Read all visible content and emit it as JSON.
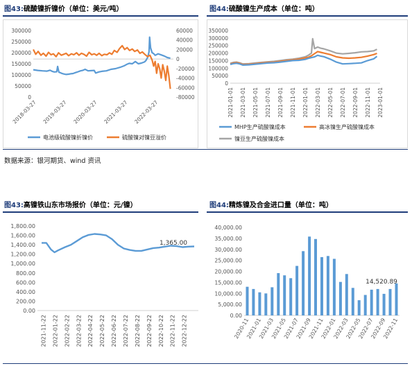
{
  "figures": [
    {
      "num": "图43:",
      "text": "硫酸镍折镍价（单位：美元/吨）"
    },
    {
      "num": "图44:",
      "text": "硫酸镍生产成本（单位：吨）"
    },
    {
      "num": "图43:",
      "text": "高镍铁山东市场报价（单位：元/镍）"
    },
    {
      "num": "图44:",
      "text": "精炼镍及合金进口量（单位：吨）"
    }
  ],
  "source": "数据来源：银河期货、wind 资讯",
  "colors": {
    "blue": "#5b9bd5",
    "orange": "#ed7d31",
    "gray": "#a5a5a5",
    "accent": "#1f3d7a"
  },
  "chart_data": [
    {
      "type": "line",
      "title": "",
      "x_ticks": [
        "2018-03-27",
        "2019-03-27",
        "2020-03-27",
        "2021-03-27",
        "2022-03-27"
      ],
      "y_left": {
        "ticks": [
          "0",
          "50000",
          "100000",
          "150000",
          "200000",
          "250000",
          "300000"
        ],
        "lim": [
          0,
          300000
        ]
      },
      "y_right": {
        "ticks": [
          "-80000",
          "-60000",
          "-40000",
          "-20000",
          "0",
          "20000",
          "40000",
          "60000"
        ],
        "lim": [
          -80000,
          60000
        ]
      },
      "series": [
        {
          "name": "电池级硫酸镍折镍价",
          "axis": "left",
          "t": [
            0,
            0.15,
            0.3,
            0.45,
            0.55,
            0.62,
            0.69,
            0.77,
            0.8,
            0.84,
            0.9,
            0.95,
            1.0,
            1.08,
            1.16,
            1.23,
            1.3,
            1.38,
            1.47,
            1.55,
            1.62,
            1.7,
            1.8,
            1.9,
            2.0,
            2.05,
            2.15,
            2.25,
            2.4,
            2.55,
            2.7,
            2.85,
            2.95,
            3.0,
            3.08,
            3.15,
            3.25,
            3.35,
            3.45,
            3.55,
            3.65,
            3.7,
            3.76,
            3.8,
            3.82,
            3.85,
            3.9,
            3.95,
            4.0,
            4.1,
            4.2,
            4.3,
            4.4,
            4.5
          ],
          "v": [
            123000,
            120000,
            118000,
            117000,
            121000,
            116000,
            113000,
            114000,
            138000,
            112000,
            109000,
            106000,
            104000,
            102000,
            103000,
            105000,
            106000,
            110000,
            114000,
            118000,
            120000,
            125000,
            118000,
            119000,
            120000,
            108000,
            113000,
            116000,
            118000,
            125000,
            128000,
            134000,
            139000,
            142000,
            148000,
            152000,
            150000,
            160000,
            150000,
            153000,
            158000,
            165000,
            180000,
            205000,
            270000,
            222000,
            200000,
            196000,
            188000,
            195000,
            190000,
            185000,
            178000,
            175000
          ]
        },
        {
          "name": "硫酸镍对镍豆溢价",
          "axis": "right",
          "t": [
            0,
            0.08,
            0.16,
            0.25,
            0.33,
            0.42,
            0.5,
            0.58,
            0.66,
            0.75,
            0.83,
            0.92,
            1.0,
            1.08,
            1.16,
            1.25,
            1.33,
            1.42,
            1.5,
            1.58,
            1.66,
            1.75,
            1.83,
            1.92,
            2.0,
            2.08,
            2.16,
            2.25,
            2.33,
            2.42,
            2.5,
            2.58,
            2.66,
            2.75,
            2.83,
            2.92,
            3.0,
            3.08,
            3.16,
            3.25,
            3.33,
            3.42,
            3.5,
            3.58,
            3.66,
            3.75,
            3.83,
            3.9,
            3.95,
            4.0,
            4.05,
            4.1,
            4.15,
            4.2,
            4.25,
            4.3,
            4.35,
            4.4,
            4.45,
            4.5
          ],
          "v": [
            20000,
            10000,
            16000,
            8000,
            12000,
            6000,
            14000,
            9000,
            11000,
            5000,
            13000,
            8000,
            10000,
            12000,
            7000,
            11000,
            9000,
            13000,
            8000,
            12000,
            10000,
            6000,
            14000,
            9000,
            11000,
            8000,
            12000,
            7000,
            10000,
            9000,
            13000,
            10000,
            18000,
            14000,
            22000,
            28000,
            20000,
            24000,
            18000,
            21000,
            16000,
            19000,
            12000,
            15000,
            10000,
            5000,
            8000,
            -2000,
            -15000,
            -5000,
            -30000,
            -10000,
            -20000,
            -40000,
            -12000,
            -25000,
            -45000,
            -15000,
            -35000,
            -63000
          ]
        }
      ]
    },
    {
      "type": "line",
      "title": "",
      "x_ticks": [
        "2021-01-01",
        "2021-03-01",
        "2021-05-01",
        "2021-07-01",
        "2021-09-01",
        "2021-11-01",
        "2022-01-01",
        "2022-03-01",
        "2022-05-01",
        "2022-07-01",
        "2022-09-01",
        "2022-11-01",
        "2023-01-01"
      ],
      "y": {
        "ticks": [
          "0",
          "50000",
          "100000",
          "150000",
          "200000",
          "250000",
          "300000",
          "350000"
        ],
        "lim": [
          0,
          350000
        ]
      },
      "series": [
        {
          "name": "MHP生产硫酸镍成本",
          "t": [
            0,
            0.5,
            1,
            1.5,
            2,
            3,
            4,
            5,
            6,
            7,
            8,
            9,
            10,
            11,
            12,
            12.5,
            13,
            13.5,
            14,
            14.5,
            15,
            16,
            17,
            18,
            19,
            20,
            21,
            22,
            23,
            23.5
          ],
          "v": [
            125000,
            130000,
            132000,
            128000,
            120000,
            122000,
            126000,
            130000,
            134000,
            136000,
            140000,
            145000,
            150000,
            152000,
            158000,
            165000,
            170000,
            175000,
            185000,
            180000,
            176000,
            160000,
            140000,
            128000,
            130000,
            132000,
            135000,
            150000,
            162000,
            178000
          ]
        },
        {
          "name": "高冰镍生产硫酸镍成本",
          "t": [
            0,
            0.5,
            1,
            1.5,
            2,
            3,
            4,
            5,
            6,
            7,
            8,
            9,
            10,
            11,
            12,
            12.5,
            13,
            13.5,
            14,
            14.5,
            15,
            16,
            17,
            18,
            19,
            20,
            21,
            22,
            23,
            23.5
          ],
          "v": [
            128000,
            134000,
            137000,
            132000,
            124000,
            126000,
            130000,
            134000,
            138000,
            140000,
            145000,
            150000,
            155000,
            160000,
            168000,
            172000,
            182000,
            196000,
            210000,
            205000,
            200000,
            190000,
            175000,
            168000,
            166000,
            168000,
            172000,
            180000,
            190000,
            198000
          ]
        },
        {
          "name": "镍豆生产硫酸镍成本",
          "t": [
            0,
            0.5,
            1,
            1.5,
            2,
            3,
            4,
            5,
            6,
            7,
            8,
            9,
            10,
            11,
            12,
            12.5,
            13,
            13.2,
            13.5,
            14,
            14.5,
            15,
            16,
            17,
            18,
            19,
            20,
            21,
            22,
            23,
            23.5
          ],
          "v": [
            132000,
            138000,
            140000,
            135000,
            128000,
            130000,
            134000,
            138000,
            142000,
            145000,
            150000,
            156000,
            160000,
            166000,
            175000,
            185000,
            200000,
            295000,
            230000,
            240000,
            232000,
            228000,
            215000,
            200000,
            195000,
            198000,
            202000,
            208000,
            210000,
            215000,
            225000
          ]
        }
      ]
    },
    {
      "type": "line",
      "title": "",
      "x_ticks": [
        "2021-11-22",
        "2022-01-22",
        "2022-02-22",
        "2022-03-22",
        "2022-04-22",
        "2022-05-22",
        "2022-06-22",
        "2022-07-22",
        "2022-08-22",
        "2022-09-22",
        "2022-10-22",
        "2022-11-22",
        "2022-12-22"
      ],
      "y": {
        "ticks": [
          "0.00",
          "200.00",
          "400.00",
          "600.00",
          "800.00",
          "1,000.00",
          "1,200.00",
          "1,400.00",
          "1,600.00",
          "1,800.00"
        ],
        "lim": [
          0,
          1800
        ]
      },
      "annotation": "1,365.00",
      "series": [
        {
          "name": "",
          "t": [
            0,
            0.4,
            0.8,
            1.1,
            1.4,
            2.0,
            2.5,
            3.0,
            3.5,
            4.0,
            4.5,
            5.0,
            5.5,
            6.0,
            6.5,
            7.0,
            7.5,
            8.0,
            8.5,
            9.0,
            9.5,
            10.0,
            10.5,
            11.0,
            11.5,
            12.0,
            12.5,
            13.0
          ],
          "v": [
            1440,
            1440,
            1300,
            1240,
            1280,
            1350,
            1400,
            1480,
            1560,
            1610,
            1630,
            1620,
            1600,
            1520,
            1400,
            1320,
            1290,
            1270,
            1270,
            1300,
            1330,
            1340,
            1360,
            1380,
            1370,
            1350,
            1360,
            1365
          ]
        }
      ]
    },
    {
      "type": "bar",
      "title": "",
      "x_ticks": [
        "2020-11",
        "2021-01",
        "2021-03",
        "2021-05",
        "2021-07",
        "2021-09",
        "2021-11",
        "2022-01",
        "2022-03",
        "2022-05",
        "2022-07",
        "2022-09",
        "2022-11"
      ],
      "y": {
        "ticks": [
          "0.00",
          "5,000.00",
          "10,000.00",
          "15,000.00",
          "20,000.00",
          "25,000.00",
          "30,000.00",
          "35,000.00",
          "40,000.00"
        ],
        "lim": [
          0,
          40000
        ]
      },
      "annotation": "14,520.89",
      "categories": [
        "2020-11",
        "2020-12",
        "2021-01",
        "2021-02",
        "2021-03",
        "2021-04",
        "2021-05",
        "2021-06",
        "2021-07",
        "2021-08",
        "2021-09",
        "2021-10",
        "2021-11",
        "2021-12",
        "2022-01",
        "2022-02",
        "2022-03",
        "2022-04",
        "2022-05",
        "2022-06",
        "2022-07",
        "2022-08",
        "2022-09",
        "2022-10",
        "2022-11"
      ],
      "values": [
        13000,
        12000,
        10500,
        10000,
        12800,
        19200,
        18200,
        16900,
        22500,
        29200,
        35800,
        34700,
        26500,
        27000,
        25700,
        15200,
        18800,
        12500,
        6900,
        9300,
        11700,
        12000,
        9800,
        12000,
        14520.89
      ]
    }
  ]
}
